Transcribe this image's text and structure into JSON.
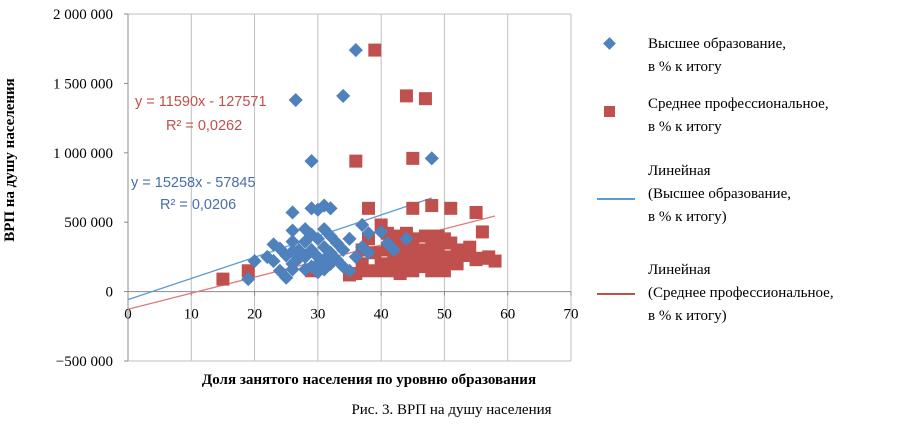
{
  "chart_data": {
    "type": "scatter",
    "title": "",
    "xlabel": "Доля занятого населения по уровню образования",
    "ylabel": "ВРП на душу населения",
    "xlim": [
      0,
      70
    ],
    "ylim": [
      -500000,
      2000000
    ],
    "x_ticks": [
      0,
      10,
      20,
      30,
      40,
      50,
      60,
      70
    ],
    "x_tick_labels": [
      "0",
      "10",
      "20",
      "30",
      "40",
      "50",
      "60",
      "70"
    ],
    "y_ticks": [
      -500000,
      0,
      500000,
      1000000,
      1500000,
      2000000
    ],
    "y_tick_labels": [
      "−500 000",
      "0",
      "500 000",
      "1 000 000",
      "1 500 000",
      "2 000 000"
    ],
    "grid": "vertical",
    "legend_position": "right",
    "colors": {
      "higher": "#4f81bd",
      "secondary": "#c0504d",
      "higher_line": "#5b9bd5",
      "secondary_line": "#e07a78"
    },
    "series": [
      {
        "name": "Высшее образование, в % к итогу",
        "legend_lines": [
          "Высшее образование,",
          "в % к итогу"
        ],
        "marker": "diamond",
        "points": [
          [
            19,
            90000
          ],
          [
            20,
            220000
          ],
          [
            22,
            250000
          ],
          [
            23,
            340000
          ],
          [
            23,
            220000
          ],
          [
            24,
            150000
          ],
          [
            24,
            310000
          ],
          [
            25,
            260000
          ],
          [
            25,
            100000
          ],
          [
            26,
            570000
          ],
          [
            26,
            440000
          ],
          [
            26,
            360000
          ],
          [
            26,
            290000
          ],
          [
            26,
            200000
          ],
          [
            26,
            160000
          ],
          [
            26.5,
            1380000
          ],
          [
            27,
            300000
          ],
          [
            27,
            240000
          ],
          [
            28,
            450000
          ],
          [
            28,
            360000
          ],
          [
            28,
            250000
          ],
          [
            28,
            160000
          ],
          [
            29,
            940000
          ],
          [
            29,
            600000
          ],
          [
            29,
            410000
          ],
          [
            29,
            300000
          ],
          [
            29,
            180000
          ],
          [
            30,
            590000
          ],
          [
            30,
            380000
          ],
          [
            30,
            250000
          ],
          [
            30,
            200000
          ],
          [
            30,
            140000
          ],
          [
            31,
            620000
          ],
          [
            31,
            450000
          ],
          [
            31,
            320000
          ],
          [
            31,
            230000
          ],
          [
            31,
            160000
          ],
          [
            32,
            600000
          ],
          [
            32,
            400000
          ],
          [
            32,
            280000
          ],
          [
            32,
            200000
          ],
          [
            33,
            350000
          ],
          [
            33,
            230000
          ],
          [
            34,
            1410000
          ],
          [
            34,
            300000
          ],
          [
            34,
            180000
          ],
          [
            35,
            380000
          ],
          [
            35,
            150000
          ],
          [
            36,
            1740000
          ],
          [
            36,
            250000
          ],
          [
            37,
            480000
          ],
          [
            37,
            320000
          ],
          [
            38,
            420000
          ],
          [
            38,
            280000
          ],
          [
            40,
            430000
          ],
          [
            41,
            350000
          ],
          [
            42,
            300000
          ],
          [
            44,
            380000
          ],
          [
            48,
            960000
          ]
        ]
      },
      {
        "name": "Среднее профессиональное, в % к итогу",
        "legend_lines": [
          "Среднее профессиональное,",
          "в % к итогу"
        ],
        "marker": "square",
        "points": [
          [
            15,
            90000
          ],
          [
            19,
            150000
          ],
          [
            29,
            150000
          ],
          [
            35,
            120000
          ],
          [
            36,
            940000
          ],
          [
            36,
            130000
          ],
          [
            37,
            300000
          ],
          [
            37,
            200000
          ],
          [
            38,
            600000
          ],
          [
            38,
            380000
          ],
          [
            38,
            150000
          ],
          [
            39,
            1740000
          ],
          [
            39,
            280000
          ],
          [
            40,
            480000
          ],
          [
            40,
            200000
          ],
          [
            40,
            150000
          ],
          [
            41,
            420000
          ],
          [
            41,
            300000
          ],
          [
            41,
            180000
          ],
          [
            42,
            400000
          ],
          [
            42,
            250000
          ],
          [
            42,
            150000
          ],
          [
            43,
            350000
          ],
          [
            43,
            220000
          ],
          [
            43,
            130000
          ],
          [
            44,
            1410000
          ],
          [
            44,
            420000
          ],
          [
            44,
            300000
          ],
          [
            44,
            180000
          ],
          [
            45,
            960000
          ],
          [
            45,
            600000
          ],
          [
            45,
            380000
          ],
          [
            45,
            250000
          ],
          [
            45,
            150000
          ],
          [
            46,
            300000
          ],
          [
            46,
            200000
          ],
          [
            47,
            1390000
          ],
          [
            47,
            400000
          ],
          [
            47,
            280000
          ],
          [
            47,
            180000
          ],
          [
            48,
            620000
          ],
          [
            48,
            350000
          ],
          [
            48,
            250000
          ],
          [
            48,
            150000
          ],
          [
            49,
            400000
          ],
          [
            49,
            300000
          ],
          [
            49,
            200000
          ],
          [
            50,
            380000
          ],
          [
            50,
            250000
          ],
          [
            50,
            150000
          ],
          [
            51,
            600000
          ],
          [
            51,
            350000
          ],
          [
            51,
            220000
          ],
          [
            52,
            300000
          ],
          [
            52,
            200000
          ],
          [
            53,
            260000
          ],
          [
            54,
            320000
          ],
          [
            55,
            570000
          ],
          [
            55,
            230000
          ],
          [
            56,
            430000
          ],
          [
            56,
            240000
          ],
          [
            57,
            250000
          ],
          [
            58,
            220000
          ]
        ]
      }
    ],
    "trendlines": [
      {
        "name": "Линейная (Высшее образование, в % к итогу)",
        "legend_lines": [
          "Линейная",
          "(Высшее образование,",
          "в % к итогу)"
        ],
        "slope": 15258,
        "intercept": -57845,
        "x_range": [
          0,
          48
        ],
        "equation": "y = 15258x - 57845",
        "r2": "R² = 0,0206"
      },
      {
        "name": "Линейная (Среднее профессиональное, в % к итогу)",
        "legend_lines": [
          "Линейная",
          "(Среднее профессиональное,",
          "в % к итогу)"
        ],
        "slope": 11590,
        "intercept": -127571,
        "x_range": [
          0,
          58
        ],
        "equation": "y = 11590x - 127571",
        "r2": "R² = 0,0262"
      }
    ]
  },
  "caption": "Рис. 3. ВРП на душу населения"
}
